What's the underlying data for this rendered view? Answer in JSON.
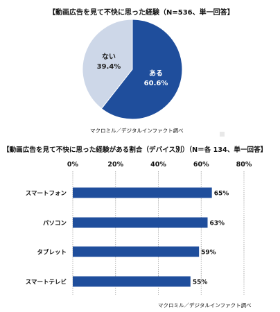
{
  "chart_data": [
    {
      "type": "pie",
      "title": "【動画広告を見て不快に思った経験（N=536、単一回答】",
      "slices": [
        {
          "label": "ある",
          "value": 60.6,
          "display": "60.6%",
          "color": "#1f4e9c",
          "text_color": "#ffffff"
        },
        {
          "label": "ない",
          "value": 39.4,
          "display": "39.4%",
          "color": "#cdd7e8",
          "text_color": "#222222"
        }
      ],
      "source": "マクロミル／デジタルインファクト調べ"
    },
    {
      "type": "bar",
      "orientation": "horizontal",
      "title": "【動画広告を見て不快に思った経験がある割合（デバイス別）（N＝各 134、単一回答】",
      "categories": [
        "スマートフォン",
        "パソコン",
        "タブレット",
        "スマートテレビ"
      ],
      "values": [
        65,
        63,
        59,
        55
      ],
      "value_labels": [
        "65%",
        "63%",
        "59%",
        "55%"
      ],
      "xlim": [
        0,
        80
      ],
      "xticks": [
        0,
        20,
        40,
        60,
        80
      ],
      "xtick_labels": [
        "0%",
        "20%",
        "40%",
        "60%",
        "80%"
      ],
      "grid": true,
      "bar_color": "#1f4e9c",
      "source": "マクロミル／デジタルインファクト調べ"
    }
  ]
}
